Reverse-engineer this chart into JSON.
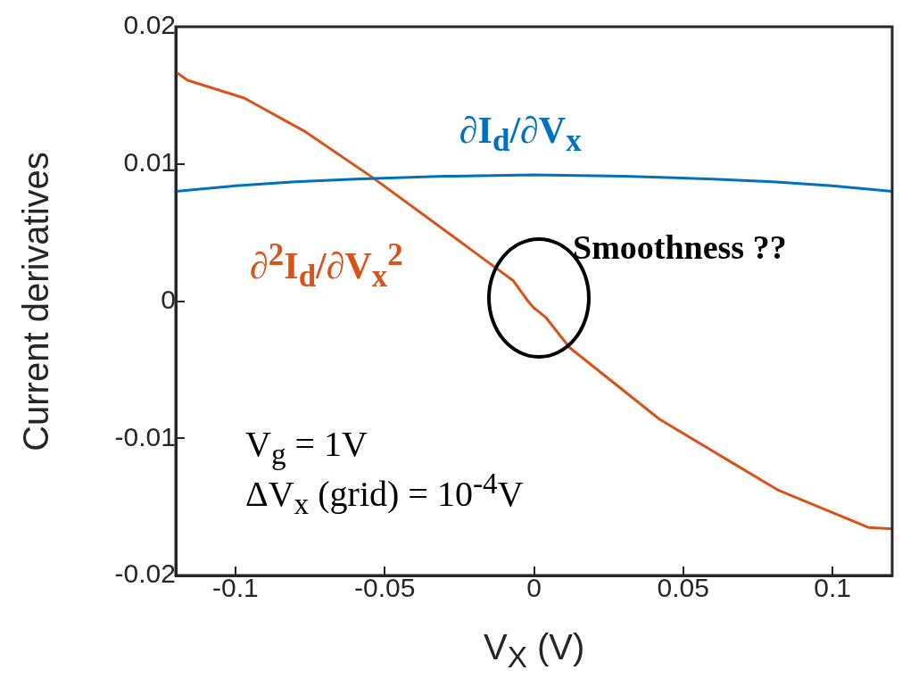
{
  "chart_data": {
    "type": "line",
    "xlabel": "V$_{X}$ (V)",
    "ylabel": "Current derivatives",
    "xlim": [
      -0.12,
      0.12
    ],
    "xticks": [
      -0.1,
      -0.05,
      0,
      0.05,
      0.1
    ],
    "ylim": [
      -0.02,
      0.02
    ],
    "yticks": [
      -0.02,
      -0.01,
      0,
      0.01,
      0.02
    ],
    "grid": false,
    "legend": false,
    "marker": "none",
    "line_style": "solid",
    "series": [
      {
        "name": "∂I$_{d}$/∂V$_{x}$",
        "color": "#0072bd",
        "x": [
          -0.12,
          -0.1,
          -0.08,
          -0.06,
          -0.03,
          0,
          0.03,
          0.06,
          0.08,
          0.1,
          0.12
        ],
        "values": [
          0.008,
          0.0084,
          0.0087,
          0.0089,
          0.0091,
          0.0092,
          0.0091,
          0.0089,
          0.0087,
          0.0084,
          0.008
        ]
      },
      {
        "name": "∂$^{2}$I$_{d}$/∂V$_{x}$$^{2}$",
        "color": "#d95319",
        "x": [
          -0.12,
          -0.116,
          -0.097,
          -0.077,
          -0.054,
          -0.032,
          -0.017,
          -0.007,
          -0.002,
          0,
          0.004,
          0.012,
          0.042,
          0.065,
          0.082,
          0.112,
          0.12
        ],
        "values": [
          0.0167,
          0.0161,
          0.0148,
          0.0124,
          0.009,
          0.0055,
          0.0031,
          0.0015,
          0.0,
          -0.0005,
          -0.0012,
          -0.0034,
          -0.0086,
          -0.0116,
          -0.0138,
          -0.0165,
          -0.0166
        ]
      }
    ],
    "annotations": [
      "Smoothness ??",
      "V$_{g}$ = 1V",
      "ΔV$_{x}$ (grid) = 10$^{-4}$V"
    ]
  }
}
